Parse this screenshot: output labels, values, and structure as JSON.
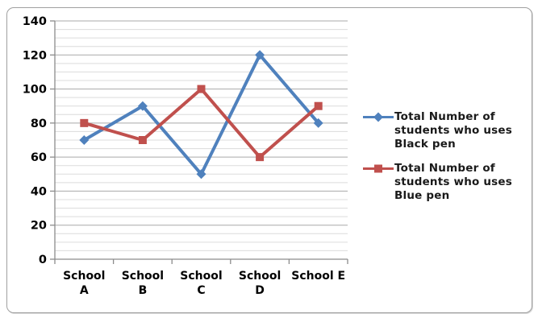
{
  "chart_data": {
    "type": "line",
    "title": "",
    "xlabel": "",
    "ylabel": "",
    "categories": [
      "School A",
      "School B",
      "School C",
      "School D",
      "School E"
    ],
    "category_label_lines": [
      [
        "School",
        "A"
      ],
      [
        "School",
        "B"
      ],
      [
        "School",
        "C"
      ],
      [
        "School",
        "D"
      ],
      [
        "School E"
      ]
    ],
    "series": [
      {
        "name": "Total Number of students who uses Black pen",
        "color": "#4F81BD",
        "marker": "diamond",
        "values": [
          70,
          90,
          50,
          120,
          80
        ]
      },
      {
        "name": "Total Number of students who uses Blue pen",
        "color": "#C0504D",
        "marker": "square",
        "values": [
          80,
          70,
          100,
          60,
          90
        ]
      }
    ],
    "ylim": [
      0,
      140
    ],
    "y_major_ticks": [
      0,
      20,
      40,
      60,
      80,
      100,
      120,
      140
    ],
    "y_minor_step": 5,
    "grid": {
      "horizontal_major": true,
      "horizontal_minor": true,
      "vertical": false
    },
    "legend_position": "right"
  },
  "style_colors": {
    "axis_line": "#8c8c8c",
    "major_grid": "#a9a9a9",
    "minor_grid": "#dcdcdc",
    "tick_label": "#000000",
    "legend_text": "#1a1a1a",
    "frame_border": "#a0a0a0",
    "background": "#ffffff"
  }
}
